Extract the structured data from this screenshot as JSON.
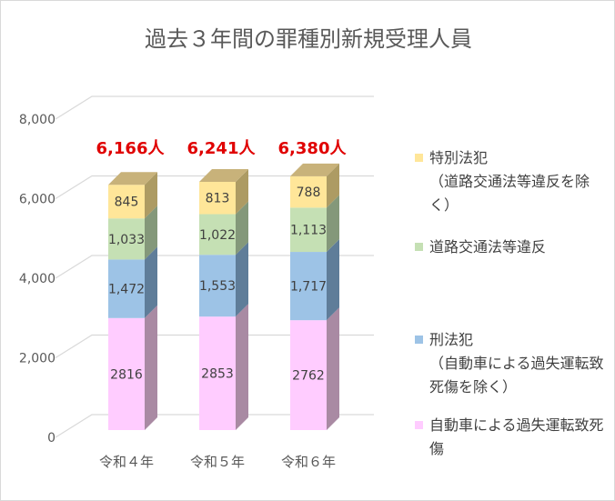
{
  "chart_data": {
    "type": "bar",
    "stacked": true,
    "three_d": true,
    "title": "過去３年間の罪種別新規受理人員",
    "categories": [
      "令和４年",
      "令和５年",
      "令和６年"
    ],
    "ylim": [
      0,
      8000
    ],
    "yticks": [
      "0",
      "2,000",
      "4,000",
      "6,000",
      "8,000"
    ],
    "grid": true,
    "legend_position": "right",
    "series": [
      {
        "name": "自動車による過失運転致死傷",
        "values": [
          2816,
          2853,
          2762
        ],
        "labels": [
          "2816",
          "2853",
          "2762"
        ],
        "color": "#ffccff",
        "side": "#a98aa3",
        "top": "#e0b0e0"
      },
      {
        "name": "刑法犯（自動車による過失運転致死傷を除く）",
        "values": [
          1472,
          1553,
          1717
        ],
        "labels": [
          "1,472",
          "1,553",
          "1,717"
        ],
        "color": "#9dc3e6",
        "side": "#5f7d99",
        "top": "#7fa3c6"
      },
      {
        "name": "道路交通法等違反",
        "values": [
          1033,
          1022,
          1113
        ],
        "labels": [
          "1,033",
          "1,022",
          "1,113"
        ],
        "color": "#c5e0b4",
        "side": "#84987a",
        "top": "#a9c29a"
      },
      {
        "name": "特別法犯（道路交通法等違反を除く）",
        "values": [
          845,
          813,
          788
        ],
        "labels": [
          "845",
          "813",
          "788"
        ],
        "color": "#ffe699",
        "side": "#ad9b63",
        "top": "#c8b27a"
      }
    ],
    "totals": [
      "6,166人",
      "6,241人",
      "6,380人"
    ],
    "total_color": "#e00000",
    "legend": [
      {
        "label": "特別法犯\n（道路交通法等違反を除く）"
      },
      {
        "label": "道路交通法等違反"
      },
      {
        "label": "刑法犯\n（自動車による過失運転致死傷を除く）"
      },
      {
        "label": "自動車による過失運転致死傷"
      }
    ]
  }
}
